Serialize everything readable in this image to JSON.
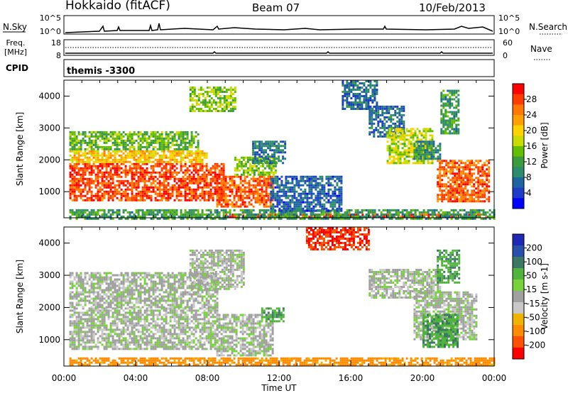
{
  "header": {
    "station": "Hokkaido (fitACF)",
    "beam": "Beam 07",
    "date": "10/Feb/2013"
  },
  "strips": {
    "nsky": {
      "label": "N.Sky",
      "ticks_left": [
        "10^5",
        "10^0"
      ],
      "ticks_right": [
        "10^5",
        "10^0"
      ],
      "right_label": "N.Search"
    },
    "freq": {
      "label_lines": [
        "Freq.",
        "[MHz]"
      ],
      "ticks_left": [
        "18",
        "8"
      ],
      "ticks_right": [
        "60",
        "0"
      ],
      "right_label": "Nave"
    },
    "cpid": {
      "label": "CPID",
      "value": "themis -3300"
    }
  },
  "chart_data": [
    {
      "type": "heatmap",
      "name": "power",
      "xlabel": "",
      "ylabel": "Slant Range [km]",
      "x_range_hours": [
        0,
        24
      ],
      "y_range_km": [
        180,
        4500
      ],
      "y_ticks": [
        1000,
        2000,
        3000,
        4000
      ],
      "colorbar": {
        "label": "Power [dB]",
        "ticks": [
          "28",
          "24",
          "20",
          "16",
          "12",
          "8",
          "4"
        ],
        "colors": [
          "#ff0000",
          "#ff3c00",
          "#ff7800",
          "#ffa000",
          "#ffd200",
          "#c8dc00",
          "#64be00",
          "#3c9b3c",
          "#2d8c6e",
          "#1e64a0",
          "#1e3cc8",
          "#0000ff"
        ]
      },
      "regions": [
        {
          "t0": 0.3,
          "t1": 8.9,
          "r0": 700,
          "r1": 1900,
          "value": 27
        },
        {
          "t0": 0.3,
          "t1": 8.0,
          "r0": 1900,
          "r1": 2300,
          "value": 20
        },
        {
          "t0": 0.3,
          "t1": 7.5,
          "r0": 2300,
          "r1": 2900,
          "value": 13
        },
        {
          "t0": 8.5,
          "t1": 11.6,
          "r0": 500,
          "r1": 1500,
          "value": 26
        },
        {
          "t0": 9.5,
          "t1": 11.8,
          "r0": 1500,
          "r1": 2100,
          "value": 14
        },
        {
          "t0": 9.0,
          "t1": 23.6,
          "r0": 190,
          "r1": 310,
          "value": 28
        },
        {
          "t0": 0.3,
          "t1": 24.0,
          "r0": 180,
          "r1": 450,
          "value": 10
        },
        {
          "t0": 11.5,
          "t1": 15.5,
          "r0": 400,
          "r1": 1500,
          "value": 5
        },
        {
          "t0": 10.5,
          "t1": 12.3,
          "r0": 1900,
          "r1": 2600,
          "value": 7
        },
        {
          "t0": 17.0,
          "t1": 19.0,
          "r0": 2700,
          "r1": 3700,
          "value": 6
        },
        {
          "t0": 15.5,
          "t1": 17.5,
          "r0": 3600,
          "r1": 4500,
          "value": 6
        },
        {
          "t0": 18.0,
          "t1": 20.5,
          "r0": 1900,
          "r1": 3000,
          "value": 16
        },
        {
          "t0": 19.5,
          "t1": 21.0,
          "r0": 2000,
          "r1": 2600,
          "value": 9
        },
        {
          "t0": 20.8,
          "t1": 23.7,
          "r0": 700,
          "r1": 2000,
          "value": 26
        },
        {
          "t0": 21.0,
          "t1": 22.0,
          "r0": 2800,
          "r1": 4200,
          "value": 10
        },
        {
          "t0": 7.0,
          "t1": 9.5,
          "r0": 3500,
          "r1": 4300,
          "value": 14
        }
      ]
    },
    {
      "type": "heatmap",
      "name": "velocity",
      "xlabel": "Time UT",
      "ylabel": "Slant Range [km]",
      "x_range_hours": [
        0,
        24
      ],
      "x_ticks": [
        "00:00",
        "04:00",
        "08:00",
        "12:00",
        "16:00",
        "20:00",
        "00:00"
      ],
      "y_range_km": [
        180,
        4500
      ],
      "y_ticks": [
        1000,
        2000,
        3000,
        4000
      ],
      "colorbar": {
        "label": "Velocity [m s-1]",
        "ticks": [
          "200",
          "100",
          "50",
          "15",
          "-15",
          "-50",
          "-100",
          "-200"
        ],
        "colors": [
          "#1e28b4",
          "#2850aa",
          "#3c7864",
          "#50b43c",
          "#78d23c",
          "#a0a0a0",
          "#c8c8c8",
          "#f0b400",
          "#ff8c00",
          "#ff5000",
          "#ff0000"
        ]
      },
      "regions": [
        {
          "t0": 0.3,
          "t1": 8.5,
          "r0": 700,
          "r1": 2000,
          "value": 0
        },
        {
          "t0": 0.3,
          "t1": 8.5,
          "r0": 2000,
          "r1": 3100,
          "value": 0
        },
        {
          "t0": 8.5,
          "t1": 11.7,
          "r0": 500,
          "r1": 1800,
          "value": 0
        },
        {
          "t0": 11.0,
          "t1": 12.2,
          "r0": 1600,
          "r1": 2000,
          "value": 30
        },
        {
          "t0": 0.3,
          "t1": 24.0,
          "r0": 200,
          "r1": 450,
          "value": -40
        },
        {
          "t0": 17.0,
          "t1": 21.0,
          "r0": 2300,
          "r1": 3200,
          "value": 0
        },
        {
          "t0": 19.5,
          "t1": 23.0,
          "r0": 1000,
          "r1": 2500,
          "value": 0
        },
        {
          "t0": 20.0,
          "t1": 22.0,
          "r0": 800,
          "r1": 1800,
          "value": 30
        },
        {
          "t0": 20.8,
          "t1": 22.0,
          "r0": 2800,
          "r1": 3800,
          "value": 30
        },
        {
          "t0": 13.5,
          "t1": 17.0,
          "r0": 3800,
          "r1": 4500,
          "value": -150
        },
        {
          "t0": 7.0,
          "t1": 10.0,
          "r0": 2600,
          "r1": 3800,
          "value": 0
        }
      ]
    }
  ]
}
